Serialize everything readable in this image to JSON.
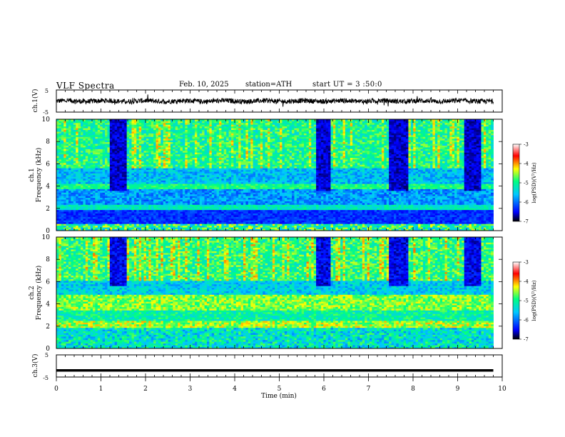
{
  "header": {
    "title": "VLF Spectra",
    "date": "Feb. 10, 2025",
    "station": "station=ATH",
    "start_ut": "start UT = 3 :50:0"
  },
  "colors": {
    "waveform": "#000000",
    "colormap": [
      "#000000",
      "#0000ff",
      "#00c8ff",
      "#00ff80",
      "#ffff00",
      "#ff0000",
      "#ffffff"
    ]
  },
  "chart_data": [
    {
      "type": "line",
      "panel": "ch1-waveform",
      "ylabel": "ch.1(V)",
      "ylim": [
        -5,
        5
      ],
      "y_ticks": [
        "5",
        "-5"
      ],
      "xlim": [
        0,
        10
      ],
      "description_level_volts": 0
    },
    {
      "type": "heatmap",
      "panel": "ch1-spectrogram",
      "ylabel": "ch.1 Frequency (kHz)",
      "ylim": [
        0,
        10
      ],
      "y_ticks": [
        "0",
        "2",
        "4",
        "6",
        "8",
        "10"
      ],
      "xlim": [
        0,
        10
      ],
      "data_end_min": 9.8,
      "colorbar": {
        "label": "log(PSD)(V²/Hz)",
        "range": [
          -7,
          -3
        ],
        "ticks": [
          "-3",
          "-4",
          "-5",
          "-6",
          "-7"
        ]
      },
      "quiet_intervals_min": [
        [
          1.15,
          1.55
        ],
        [
          5.8,
          6.15
        ],
        [
          7.45,
          7.85
        ],
        [
          9.1,
          9.5
        ]
      ]
    },
    {
      "type": "heatmap",
      "panel": "ch2-spectrogram",
      "ylabel": "ch.2 Frequency (kHz)",
      "ylim": [
        0,
        10
      ],
      "y_ticks": [
        "0",
        "2",
        "4",
        "6",
        "8",
        "10"
      ],
      "xlim": [
        0,
        10
      ],
      "data_end_min": 9.8,
      "colorbar": {
        "label": "log(PSD)(V²/Hz)",
        "range": [
          -7,
          -3
        ],
        "ticks": [
          "-3",
          "-4",
          "-5",
          "-6",
          "-7"
        ]
      },
      "quiet_intervals_min": [
        [
          1.15,
          1.55
        ],
        [
          5.8,
          6.15
        ],
        [
          7.45,
          7.85
        ],
        [
          9.1,
          9.5
        ]
      ]
    },
    {
      "type": "line",
      "panel": "ch3-waveform",
      "ylabel": "ch.3(V)",
      "ylim": [
        -5,
        5
      ],
      "y_ticks": [
        "5",
        "-5"
      ],
      "xlim": [
        0,
        10
      ],
      "x_ticks": [
        "0",
        "1",
        "2",
        "3",
        "4",
        "5",
        "6",
        "7",
        "8",
        "9",
        "10"
      ],
      "xlabel": "Time (min)",
      "level_volts": -2
    }
  ]
}
